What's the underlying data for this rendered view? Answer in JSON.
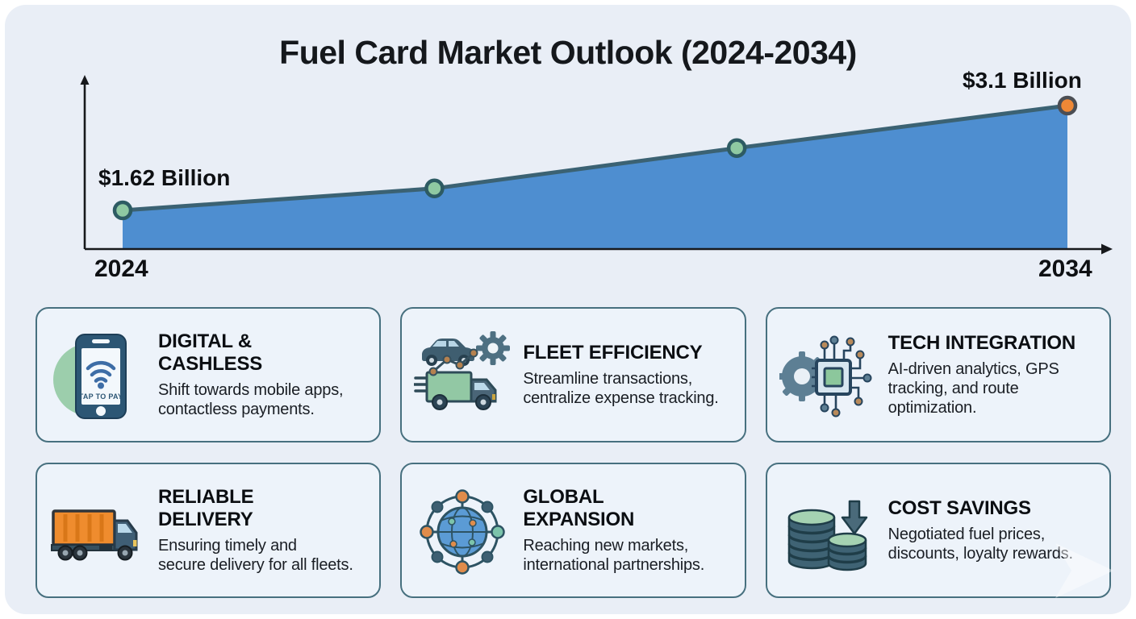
{
  "page_title": "Fuel Card Market Outlook (2024-2034)",
  "chart_data": {
    "type": "area",
    "title": "Fuel Card Market Outlook (2024-2034)",
    "x": [
      2024,
      2027.3,
      2030.5,
      2034
    ],
    "values_billion_usd": [
      1.62,
      1.93,
      2.5,
      3.1
    ],
    "start_value_label": "$1.62 Billion",
    "end_value_label": "$3.1 Billion",
    "x_tick_labels": [
      "2024",
      "2034"
    ],
    "xlabel": "",
    "ylabel": "",
    "grid": false,
    "legend": false,
    "area_color": "#4e8ed0",
    "line_color": "#3b6273",
    "marker_colors": [
      "#8fc9a2",
      "#8fc9a2",
      "#8fc9a2",
      "#ee8836"
    ],
    "marker_stroke_colors": [
      "#2d5b63",
      "#2d5b63",
      "#2d5b63",
      "#4b4e54"
    ],
    "axis_color": "#17191c"
  },
  "cards": [
    {
      "icon": "smartphone-tap-to-pay-icon",
      "icon_text": "TAP TO PAY",
      "title_lines": [
        "DIGITAL &",
        "CASHLESS"
      ],
      "body_lines": [
        "Shift towards mobile apps,",
        "contactless payments."
      ]
    },
    {
      "icon": "fleet-truck-gear-icon",
      "title_lines": [
        "FLEET EFFICIENCY"
      ],
      "body_lines": [
        "Streamline transactions,",
        "centralize expense tracking."
      ]
    },
    {
      "icon": "chip-gear-icon",
      "title_lines": [
        "TECH INTEGRATION"
      ],
      "body_lines": [
        "AI-driven analytics, GPS",
        "tracking, and route",
        "optimization."
      ]
    },
    {
      "icon": "cargo-truck-icon",
      "title_lines": [
        "RELIABLE",
        "DELIVERY"
      ],
      "body_lines": [
        "Ensuring timely and",
        "secure delivery for all fleets."
      ]
    },
    {
      "icon": "globe-network-icon",
      "title_lines": [
        "GLOBAL",
        "EXPANSION"
      ],
      "body_lines": [
        "Reaching new markets,",
        "international partnerships."
      ]
    },
    {
      "icon": "coins-arrow-icon",
      "title_lines": [
        "COST SAVINGS"
      ],
      "body_lines": [
        "Negotiated fuel prices,",
        "discounts, loyalty rewards."
      ]
    }
  ],
  "colors": {
    "panel_background": "#e9eef6",
    "card_background": "#edf3fa",
    "card_border": "#47707f",
    "title_text": "#15181c",
    "body_text": "#1a1e24",
    "chart_area": "#4e8ed0",
    "chart_line": "#3b6273",
    "marker_green": "#8fc9a2",
    "marker_orange": "#ee8836"
  },
  "decor": {
    "watermark_icon": "white-chevron-watermark"
  }
}
